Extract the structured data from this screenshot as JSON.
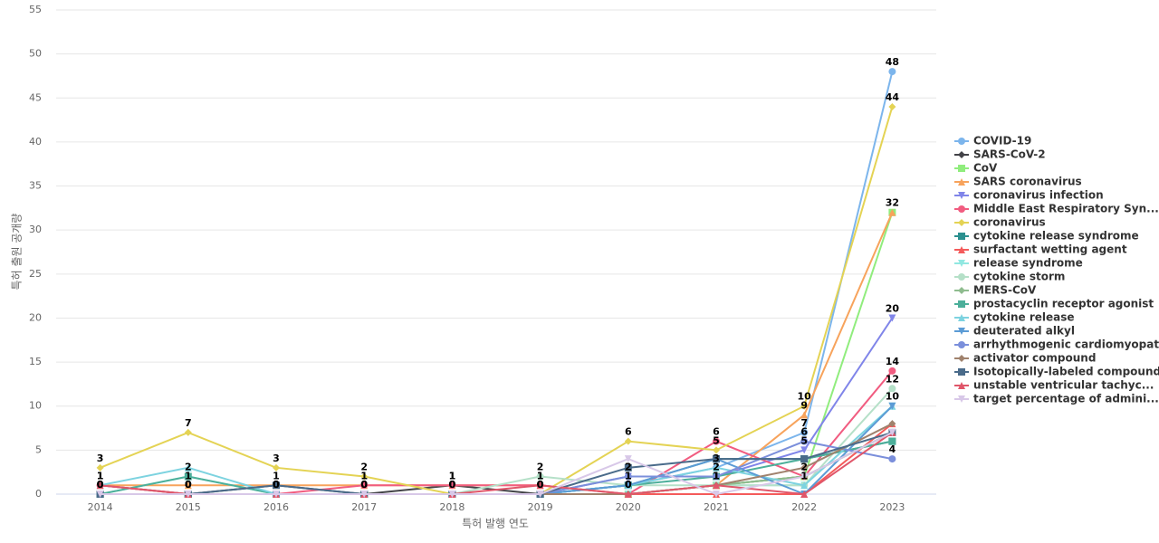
{
  "chart_data": {
    "type": "line",
    "x_label": "특허 발행 연도",
    "y_label": "특허 출원 공개량",
    "categories": [
      "2014",
      "2015",
      "2016",
      "2017",
      "2018",
      "2019",
      "2020",
      "2021",
      "2022",
      "2023"
    ],
    "ylim": [
      0,
      55
    ],
    "yticks": [
      0,
      5,
      10,
      15,
      20,
      25,
      30,
      35,
      40,
      45,
      50,
      55
    ],
    "grid": true,
    "legend": "right",
    "series": [
      {
        "name": "COVID-19",
        "color": "#7cb5ec",
        "marker": "circle",
        "show_labels": true,
        "values": [
          0,
          0,
          0,
          0,
          0,
          0,
          1,
          3,
          7,
          48
        ]
      },
      {
        "name": "SARS-CoV-2",
        "color": "#434348",
        "marker": "diamond",
        "show_labels": false,
        "values": [
          1,
          0,
          1,
          0,
          1,
          0,
          0,
          1,
          2,
          7
        ]
      },
      {
        "name": "CoV",
        "color": "#90ed7d",
        "marker": "square",
        "show_labels": false,
        "values": [
          0,
          0,
          0,
          0,
          0,
          0,
          0,
          1,
          2,
          32
        ]
      },
      {
        "name": "SARS coronavirus",
        "color": "#f7a35c",
        "marker": "triangle",
        "show_labels": true,
        "values": [
          1,
          1,
          1,
          1,
          1,
          1,
          0,
          1,
          9,
          32
        ]
      },
      {
        "name": "coronavirus infection",
        "color": "#8085e9",
        "marker": "triangle-down",
        "show_labels": true,
        "values": [
          0,
          0,
          0,
          0,
          0,
          0,
          2,
          2,
          5,
          20
        ]
      },
      {
        "name": "Middle East Respiratory Syn...",
        "color": "#f15c80",
        "marker": "circle",
        "show_labels": true,
        "values": [
          1,
          0,
          0,
          1,
          1,
          1,
          0,
          6,
          2,
          14
        ]
      },
      {
        "name": "coronavirus",
        "color": "#e4d354",
        "marker": "diamond",
        "show_labels": true,
        "values": [
          3,
          7,
          3,
          2,
          0,
          0,
          6,
          5,
          10,
          44
        ]
      },
      {
        "name": "cytokine release syndrome",
        "color": "#2b908f",
        "marker": "square",
        "show_labels": false,
        "values": [
          0,
          0,
          0,
          0,
          0,
          0,
          1,
          4,
          4,
          6
        ]
      },
      {
        "name": "surfactant wetting agent",
        "color": "#f45b5b",
        "marker": "triangle",
        "show_labels": false,
        "values": [
          0,
          0,
          0,
          0,
          0,
          0,
          0,
          0,
          0,
          8
        ]
      },
      {
        "name": "release syndrome",
        "color": "#91e8e1",
        "marker": "triangle-down",
        "show_labels": true,
        "values": [
          0,
          2,
          0,
          0,
          0,
          0,
          0,
          1,
          1,
          10
        ]
      },
      {
        "name": "cytokine storm",
        "color": "#b5e0c8",
        "marker": "circle",
        "show_labels": true,
        "values": [
          0,
          0,
          0,
          0,
          0,
          2,
          1,
          1,
          1,
          12
        ]
      },
      {
        "name": "MERS-CoV",
        "color": "#8fbc8f",
        "marker": "diamond",
        "show_labels": false,
        "values": [
          0,
          0,
          0,
          0,
          0,
          0,
          0,
          1,
          2,
          7
        ]
      },
      {
        "name": "prostacyclin receptor agonist",
        "color": "#4caf9a",
        "marker": "square",
        "show_labels": false,
        "values": [
          0,
          2,
          0,
          0,
          0,
          0,
          1,
          2,
          4,
          6
        ]
      },
      {
        "name": "cytokine release",
        "color": "#7dd3e0",
        "marker": "triangle",
        "show_labels": false,
        "values": [
          1,
          3,
          0,
          0,
          0,
          0,
          1,
          3,
          1,
          10
        ]
      },
      {
        "name": "deuterated alkyl",
        "color": "#5b9bd5",
        "marker": "triangle-down",
        "show_labels": false,
        "values": [
          0,
          0,
          0,
          0,
          0,
          0,
          1,
          4,
          0,
          10
        ]
      },
      {
        "name": "arrhythmogenic cardiomyopathy",
        "color": "#7b8fdb",
        "marker": "circle",
        "show_labels": true,
        "values": [
          0,
          0,
          0,
          0,
          0,
          0,
          2,
          2,
          6,
          4
        ]
      },
      {
        "name": "activator compound",
        "color": "#a0826d",
        "marker": "diamond",
        "show_labels": false,
        "values": [
          0,
          0,
          0,
          0,
          0,
          0,
          0,
          1,
          3,
          8
        ]
      },
      {
        "name": "Isotopically-labeled compound",
        "color": "#4a6b8a",
        "marker": "square",
        "show_labels": false,
        "values": [
          0,
          0,
          1,
          0,
          0,
          0,
          3,
          4,
          4,
          7
        ]
      },
      {
        "name": "unstable ventricular tachyc...",
        "color": "#e0566a",
        "marker": "triangle",
        "show_labels": false,
        "values": [
          1,
          0,
          0,
          0,
          0,
          1,
          0,
          1,
          0,
          7
        ]
      },
      {
        "name": "target percentage of admini...",
        "color": "#d8c8e8",
        "marker": "triangle-down",
        "show_labels": false,
        "values": [
          0,
          0,
          0,
          0,
          0,
          0,
          4,
          0,
          2,
          7
        ]
      }
    ]
  }
}
